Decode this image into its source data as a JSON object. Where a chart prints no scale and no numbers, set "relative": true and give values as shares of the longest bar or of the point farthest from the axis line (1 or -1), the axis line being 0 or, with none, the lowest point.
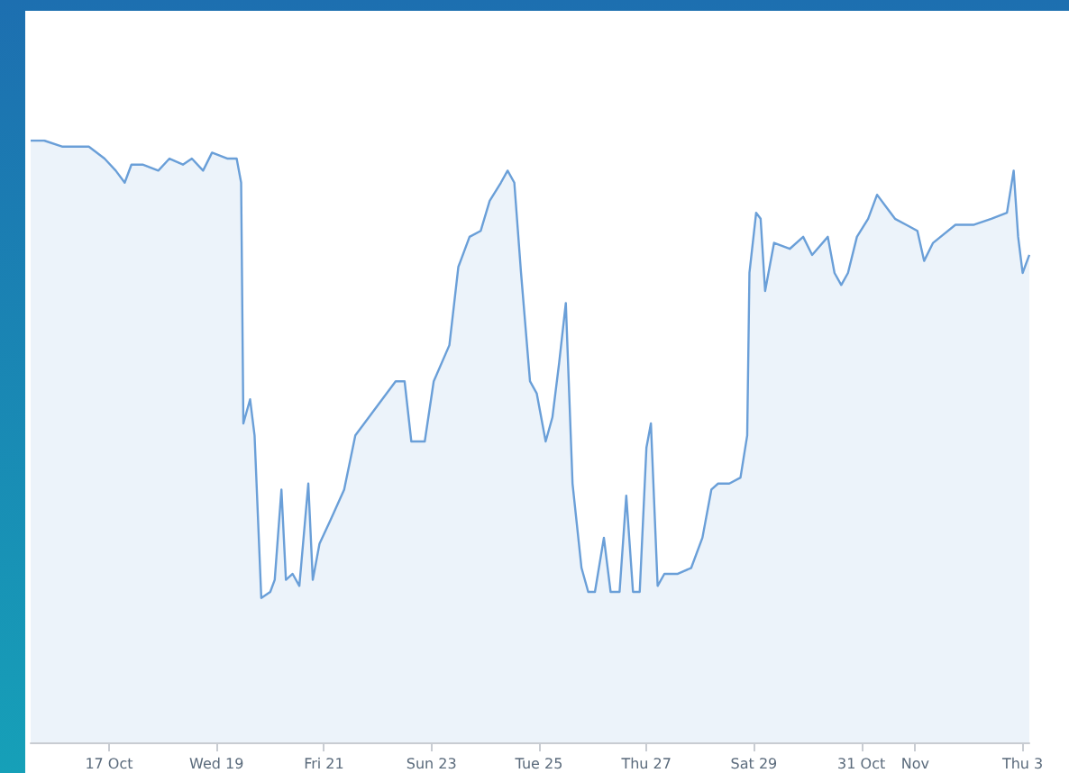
{
  "chart_data": {
    "type": "area",
    "relative": true,
    "color": "#6a9fd8",
    "x": [
      "--10-15T13:00",
      "--10-15T19:00",
      "--10-16T03:00",
      "--10-16T15:00",
      "--10-16T22:00",
      "--10-17T03:00",
      "--10-17T07:00",
      "--10-17T10:00",
      "--10-17T15:00",
      "--10-17T22:00",
      "--10-18T03:00",
      "--10-18T09:00",
      "--10-18T13:00",
      "--10-18T18:00",
      "--10-18T22:00",
      "--10-19T05:00",
      "--10-19T09:00",
      "--10-19T11:00",
      "--10-19T12:00",
      "--10-19T15:00",
      "--10-19T17:00",
      "--10-19T20:00",
      "--10-20T00:00",
      "--10-20T02:00",
      "--10-20T05:00",
      "--10-20T07:00",
      "--10-20T10:00",
      "--10-20T13:00",
      "--10-20T17:00",
      "--10-20T19:00",
      "--10-20T22:00",
      "--10-21T03:00",
      "--10-21T09:00",
      "--10-21T14:00",
      "--10-21T20:00",
      "--10-22T02:00",
      "--10-22T08:00",
      "--10-22T12:00",
      "--10-22T15:00",
      "--10-22T21:00",
      "--10-23T01:00",
      "--10-23T08:00",
      "--10-23T12:00",
      "--10-23T17:00",
      "--10-23T22:00",
      "--10-24T02:00",
      "--10-24T07:00",
      "--10-24T10:00",
      "--10-24T13:00",
      "--10-24T16:00",
      "--10-24T20:00",
      "--10-24T23:00",
      "--10-25T03:00",
      "--10-25T06:00",
      "--10-25T09:00",
      "--10-25T12:00",
      "--10-25T15:00",
      "--10-25T19:00",
      "--10-25T22:00",
      "--10-26T01:00",
      "--10-26T05:00",
      "--10-26T08:00",
      "--10-26T12:00",
      "--10-26T15:00",
      "--10-26T18:00",
      "--10-26T21:00",
      "--10-27T00:00",
      "--10-27T02:00",
      "--10-27T05:00",
      "--10-27T08:00",
      "--10-27T14:00",
      "--10-27T20:00",
      "--10-28T01:00",
      "--10-28T05:00",
      "--10-28T08:00",
      "--10-28T13:00",
      "--10-28T18:00",
      "--10-28T21:00",
      "--10-28T22:00",
      "--10-29T01:00",
      "--10-29T03:00",
      "--10-29T05:00",
      "--10-29T09:00",
      "--10-29T16:00",
      "--10-29T22:00",
      "--10-30T02:00",
      "--10-30T09:00",
      "--10-30T12:00",
      "--10-30T15:00",
      "--10-30T18:00",
      "--10-30T22:00",
      "--10-31T03:00",
      "--10-31T07:00",
      "--10-31T11:00",
      "--10-31T15:00",
      "--10-31T20:00",
      "--11-01T01:00",
      "--11-01T04:00",
      "--11-01T08:00",
      "--11-01T18:00",
      "--11-02T02:00",
      "--11-02T10:00",
      "--11-02T17:00",
      "--11-02T20:00",
      "--11-02T22:00",
      "--11-03T00:00",
      "--11-03T03:00"
    ],
    "values": [
      1.0,
      1.0,
      0.99,
      0.99,
      0.97,
      0.95,
      0.93,
      0.96,
      0.96,
      0.95,
      0.97,
      0.96,
      0.97,
      0.95,
      0.98,
      0.97,
      0.97,
      0.93,
      0.53,
      0.57,
      0.51,
      0.24,
      0.25,
      0.27,
      0.42,
      0.27,
      0.28,
      0.26,
      0.43,
      0.27,
      0.33,
      0.37,
      0.42,
      0.51,
      0.54,
      0.57,
      0.6,
      0.6,
      0.5,
      0.5,
      0.6,
      0.66,
      0.79,
      0.84,
      0.85,
      0.9,
      0.93,
      0.95,
      0.93,
      0.78,
      0.6,
      0.58,
      0.5,
      0.54,
      0.63,
      0.73,
      0.43,
      0.29,
      0.25,
      0.25,
      0.34,
      0.25,
      0.25,
      0.41,
      0.25,
      0.25,
      0.49,
      0.53,
      0.26,
      0.28,
      0.28,
      0.29,
      0.34,
      0.42,
      0.43,
      0.43,
      0.44,
      0.51,
      0.78,
      0.88,
      0.87,
      0.75,
      0.83,
      0.82,
      0.84,
      0.81,
      0.84,
      0.78,
      0.76,
      0.78,
      0.84,
      0.87,
      0.91,
      0.89,
      0.87,
      0.86,
      0.85,
      0.8,
      0.83,
      0.86,
      0.86,
      0.87,
      0.88,
      0.95,
      0.84,
      0.78,
      0.81
    ],
    "xlim": [
      "--10-15T13:00",
      "--11-03T03:00"
    ],
    "xticks": [
      {
        "value": "--10-17",
        "label": "17 Oct"
      },
      {
        "value": "--10-19",
        "label": "Wed 19"
      },
      {
        "value": "--10-21",
        "label": "Fri 21"
      },
      {
        "value": "--10-23",
        "label": "Sun 23"
      },
      {
        "value": "--10-25",
        "label": "Tue 25"
      },
      {
        "value": "--10-27",
        "label": "Thu 27"
      },
      {
        "value": "--10-29",
        "label": "Sat 29"
      },
      {
        "value": "--10-31",
        "label": "31 Oct"
      },
      {
        "value": "--11-01",
        "label": "Nov"
      },
      {
        "value": "--11-03",
        "label": "Thu 3"
      }
    ]
  }
}
